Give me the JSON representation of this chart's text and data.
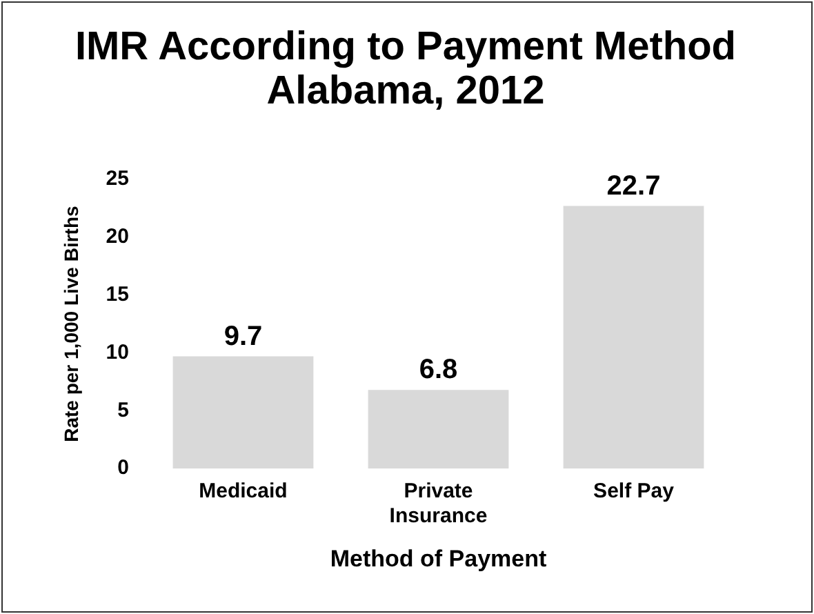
{
  "chart_data": {
    "type": "bar",
    "title": "IMR According to Payment Method Alabama, 2012",
    "xlabel": "Method of Payment",
    "ylabel": "Rate per 1,000 Live Births",
    "categories": [
      "Medicaid",
      "Private Insurance",
      "Self Pay"
    ],
    "values": [
      9.7,
      6.8,
      22.7
    ],
    "color": "#d9d9d9",
    "ylim": [
      0,
      25
    ],
    "yticks": [
      0,
      5,
      10,
      15,
      20,
      25
    ],
    "grid": false,
    "data_labels": true,
    "legend": false
  }
}
